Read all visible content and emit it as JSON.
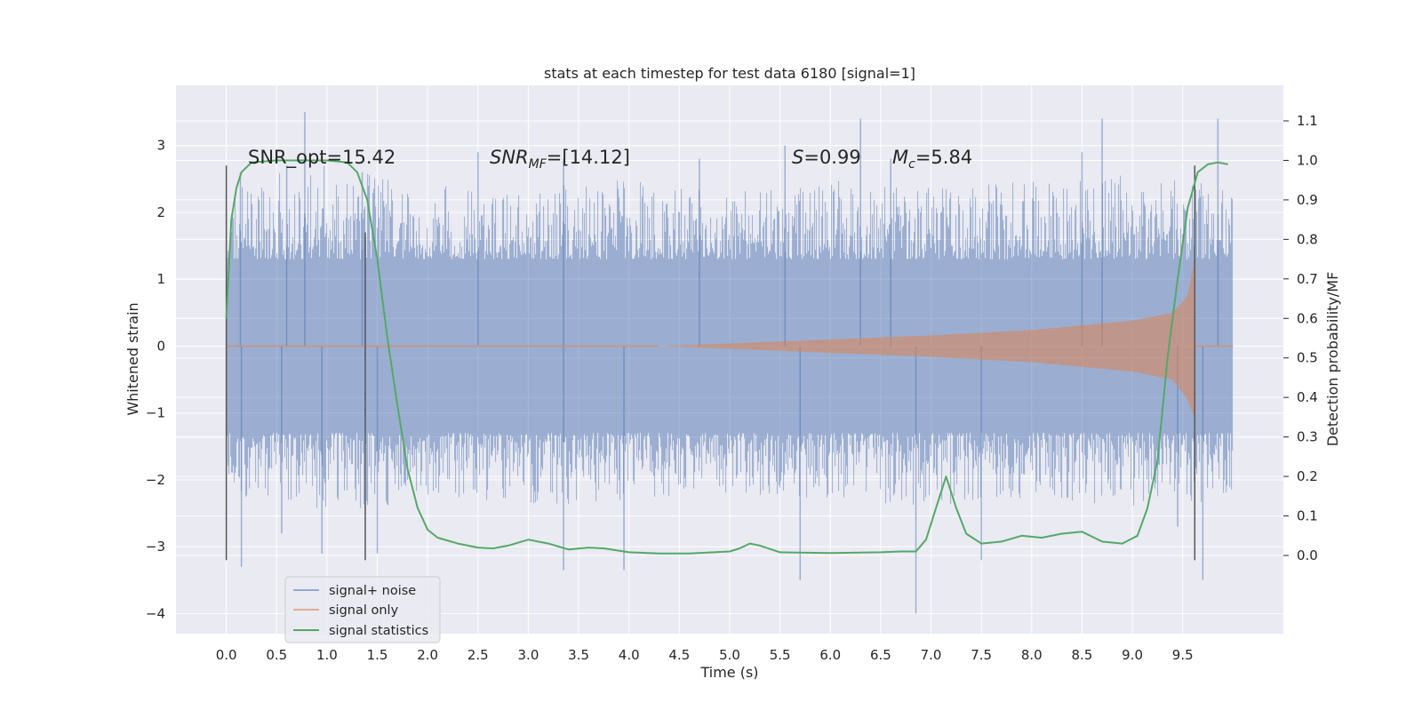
{
  "chart_data": {
    "type": "line",
    "title": "stats at each timestep for test data 6180 [signal=1]",
    "xlabel": "Time (s)",
    "ylabel": "Whitened strain",
    "y2label": "Detection probability/MF",
    "xlim": [
      -0.5,
      10.5
    ],
    "ylim": [
      -4.3,
      3.9
    ],
    "y2lim": [
      -0.198,
      1.19
    ],
    "x_ticks": [
      0.0,
      0.5,
      1.0,
      1.5,
      2.0,
      2.5,
      3.0,
      3.5,
      4.0,
      4.5,
      5.0,
      5.5,
      6.0,
      6.5,
      7.0,
      7.5,
      8.0,
      8.5,
      9.0,
      9.5
    ],
    "x_tick_labels": [
      "0.0",
      "0.5",
      "1.0",
      "1.5",
      "2.0",
      "2.5",
      "3.0",
      "3.5",
      "4.0",
      "4.5",
      "5.0",
      "5.5",
      "6.0",
      "6.5",
      "7.0",
      "7.5",
      "8.0",
      "8.5",
      "9.0",
      "9.5"
    ],
    "y_ticks": [
      -4,
      -3,
      -2,
      -1,
      0,
      1,
      2,
      3
    ],
    "y_tick_labels": [
      "−4",
      "−3",
      "−2",
      "−1",
      "0",
      "1",
      "2",
      "3"
    ],
    "y2_ticks": [
      0.0,
      0.1,
      0.2,
      0.3,
      0.4,
      0.5,
      0.6,
      0.7,
      0.8,
      0.9,
      1.0,
      1.1
    ],
    "y2_tick_labels": [
      "0.0",
      "0.1",
      "0.2",
      "0.3",
      "0.4",
      "0.5",
      "0.6",
      "0.7",
      "0.8",
      "0.9",
      "1.0",
      "1.1"
    ],
    "grid": true,
    "legend_position": "lower-left",
    "series": [
      {
        "name": "signal+ noise",
        "color": "#4c72b0",
        "axis": "left",
        "noise_range": [
          0.0,
          10.0
        ],
        "envelope_hi": [
          [
            0.0,
            2.5
          ],
          [
            1.0,
            2.7
          ],
          [
            2.0,
            2.4
          ],
          [
            3.0,
            2.4
          ],
          [
            4.0,
            2.5
          ],
          [
            5.0,
            2.3
          ],
          [
            6.0,
            2.5
          ],
          [
            7.0,
            2.4
          ],
          [
            8.0,
            2.5
          ],
          [
            9.0,
            2.6
          ],
          [
            10.0,
            2.4
          ]
        ],
        "envelope_lo": [
          [
            0.0,
            -2.2
          ],
          [
            1.0,
            -2.5
          ],
          [
            2.0,
            -2.3
          ],
          [
            3.0,
            -2.4
          ],
          [
            4.0,
            -2.3
          ],
          [
            5.0,
            -2.2
          ],
          [
            6.0,
            -2.3
          ],
          [
            7.0,
            -2.4
          ],
          [
            8.0,
            -2.3
          ],
          [
            9.0,
            -2.5
          ],
          [
            10.0,
            -2.3
          ]
        ],
        "spikes": [
          [
            0.14,
            2.6
          ],
          [
            0.15,
            -3.3
          ],
          [
            0.6,
            2.7
          ],
          [
            0.78,
            3.5
          ],
          [
            0.55,
            -2.8
          ],
          [
            0.95,
            -3.1
          ],
          [
            1.5,
            -3.1
          ],
          [
            1.35,
            2.6
          ],
          [
            2.5,
            2.9
          ],
          [
            3.35,
            2.8
          ],
          [
            3.35,
            -3.35
          ],
          [
            3.95,
            -3.35
          ],
          [
            4.7,
            2.8
          ],
          [
            5.55,
            3.0
          ],
          [
            5.7,
            -3.5
          ],
          [
            6.3,
            3.4
          ],
          [
            6.6,
            2.8
          ],
          [
            6.85,
            -4.0
          ],
          [
            7.5,
            -3.2
          ],
          [
            8.5,
            2.9
          ],
          [
            8.7,
            3.4
          ],
          [
            9.7,
            -3.5
          ],
          [
            9.85,
            3.4
          ],
          [
            9.45,
            -2.7
          ]
        ]
      },
      {
        "name": "signal only",
        "color": "#dd8452",
        "axis": "left",
        "chirp_start": 4.3,
        "merger": 9.62,
        "ringdown_end": 9.7,
        "amplitude": [
          [
            4.3,
            0.0
          ],
          [
            5.0,
            0.04
          ],
          [
            6.0,
            0.1
          ],
          [
            7.0,
            0.16
          ],
          [
            8.0,
            0.24
          ],
          [
            9.0,
            0.38
          ],
          [
            9.4,
            0.5
          ],
          [
            9.55,
            0.75
          ],
          [
            9.62,
            1.35
          ]
        ],
        "amplitude_lower": [
          [
            4.3,
            0.0
          ],
          [
            5.0,
            -0.04
          ],
          [
            6.0,
            -0.1
          ],
          [
            7.0,
            -0.16
          ],
          [
            8.0,
            -0.24
          ],
          [
            9.0,
            -0.38
          ],
          [
            9.4,
            -0.5
          ],
          [
            9.55,
            -0.8
          ],
          [
            9.62,
            -1.1
          ]
        ]
      },
      {
        "name": "signal statistics",
        "color": "#55a868",
        "axis": "right",
        "x": [
          0.0,
          0.05,
          0.1,
          0.15,
          0.25,
          0.5,
          0.8,
          1.0,
          1.2,
          1.3,
          1.4,
          1.5,
          1.6,
          1.7,
          1.8,
          1.9,
          2.0,
          2.1,
          2.3,
          2.5,
          2.65,
          2.8,
          3.0,
          3.2,
          3.4,
          3.6,
          3.75,
          4.0,
          4.3,
          4.6,
          5.0,
          5.1,
          5.2,
          5.3,
          5.5,
          6.0,
          6.5,
          6.7,
          6.85,
          6.95,
          7.05,
          7.15,
          7.25,
          7.35,
          7.5,
          7.7,
          7.9,
          8.1,
          8.3,
          8.5,
          8.7,
          8.9,
          9.05,
          9.15,
          9.25,
          9.35,
          9.45,
          9.55,
          9.65,
          9.75,
          9.85,
          9.95
        ],
        "y": [
          0.6,
          0.85,
          0.93,
          0.97,
          0.995,
          1.0,
          1.0,
          1.0,
          0.995,
          0.97,
          0.9,
          0.75,
          0.55,
          0.38,
          0.22,
          0.12,
          0.065,
          0.045,
          0.03,
          0.02,
          0.018,
          0.025,
          0.04,
          0.03,
          0.015,
          0.02,
          0.018,
          0.008,
          0.005,
          0.005,
          0.01,
          0.018,
          0.03,
          0.025,
          0.008,
          0.006,
          0.008,
          0.01,
          0.01,
          0.04,
          0.12,
          0.2,
          0.12,
          0.055,
          0.03,
          0.035,
          0.05,
          0.045,
          0.055,
          0.06,
          0.035,
          0.03,
          0.05,
          0.12,
          0.24,
          0.5,
          0.7,
          0.88,
          0.97,
          0.99,
          0.995,
          0.99
        ]
      }
    ],
    "vlines": [
      {
        "x": 0.0,
        "ymin": -3.2,
        "ymax": 2.7
      },
      {
        "x": 1.38,
        "ymin": -3.2,
        "ymax": 1.7
      },
      {
        "x": 9.62,
        "ymin": -3.2,
        "ymax": 2.7
      }
    ],
    "annotations": [
      {
        "label": "SNR_opt=15.42",
        "x": 0.2,
        "y": 2.55
      },
      {
        "label": "SNR_MF=[14.12]",
        "x": 2.6,
        "y": 2.55
      },
      {
        "label": "S=0.99",
        "x": 5.6,
        "y": 2.55
      },
      {
        "label": "M_c=5.84",
        "x": 6.6,
        "y": 2.55
      }
    ]
  },
  "annotations_text": {
    "snr_opt": "SNR_opt=15.42",
    "snr_mf_base": "SNR",
    "snr_mf_sub": "MF",
    "snr_mf_value": "=[14.12]",
    "s_base": "S",
    "s_value": "=0.99",
    "mc_base": "M",
    "mc_sub": "c",
    "mc_value": "=5.84"
  }
}
